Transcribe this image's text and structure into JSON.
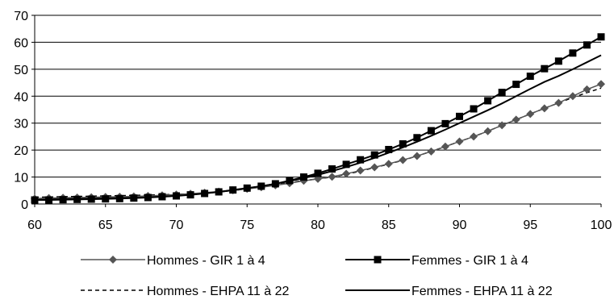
{
  "chart_data": {
    "type": "line",
    "title": "",
    "xlabel": "",
    "ylabel": "",
    "xlim": [
      60,
      100
    ],
    "ylim": [
      0,
      70
    ],
    "x_ticks": [
      60,
      65,
      70,
      75,
      80,
      85,
      90,
      95,
      100
    ],
    "y_ticks": [
      0,
      10,
      20,
      30,
      40,
      50,
      60,
      70
    ],
    "x_tick_labels": [
      "60",
      "65",
      "70",
      "75",
      "80",
      "85",
      "90",
      "95",
      "100"
    ],
    "y_tick_labels": [
      "0",
      "10",
      "20",
      "30",
      "40",
      "50",
      "60",
      "70"
    ],
    "grid": "horizontal",
    "legend_position": "bottom",
    "x": [
      60,
      61,
      62,
      63,
      64,
      65,
      66,
      67,
      68,
      69,
      70,
      71,
      72,
      73,
      74,
      75,
      76,
      77,
      78,
      79,
      80,
      81,
      82,
      83,
      84,
      85,
      86,
      87,
      88,
      89,
      90,
      91,
      92,
      93,
      94,
      95,
      96,
      97,
      98,
      99,
      100
    ],
    "series": [
      {
        "name": "Hommes - GIR 1 à 4",
        "style": "solid-diamond",
        "color": "#555555",
        "values": [
          2.0,
          2.2,
          2.3,
          2.4,
          2.5,
          2.6,
          2.7,
          2.8,
          3.0,
          3.2,
          3.5,
          3.8,
          4.2,
          4.6,
          5.1,
          5.6,
          6.2,
          6.9,
          7.7,
          8.6,
          9.3,
          10.1,
          11.2,
          12.4,
          13.6,
          14.9,
          16.3,
          17.8,
          19.5,
          21.3,
          23.2,
          25.0,
          27.0,
          29.2,
          31.3,
          33.4,
          35.5,
          37.5,
          40.0,
          42.5,
          44.5
        ]
      },
      {
        "name": "Femmes - GIR 1 à 4",
        "style": "solid-square",
        "color": "#000000",
        "values": [
          1.5,
          1.5,
          1.6,
          1.7,
          1.8,
          1.9,
          2.0,
          2.2,
          2.4,
          2.7,
          3.0,
          3.4,
          3.9,
          4.5,
          5.2,
          5.9,
          6.6,
          7.5,
          8.7,
          10.0,
          11.4,
          13.0,
          14.7,
          16.4,
          18.2,
          20.2,
          22.3,
          24.6,
          27.2,
          29.8,
          32.5,
          35.3,
          38.3,
          41.4,
          44.4,
          47.4,
          50.2,
          53.0,
          56.0,
          59.0,
          62.0
        ]
      },
      {
        "name": "Hommes - EHPA 11 à 22",
        "style": "dashed",
        "color": "#000000",
        "values": [
          2.5,
          2.6,
          2.7,
          2.8,
          2.9,
          3.0,
          3.1,
          3.2,
          3.3,
          3.4,
          3.6,
          3.8,
          4.1,
          4.5,
          5.0,
          5.6,
          6.3,
          7.1,
          7.9,
          8.7,
          9.3,
          10.0,
          11.0,
          12.2,
          13.5,
          14.8,
          16.2,
          17.8,
          19.5,
          21.3,
          23.2,
          25.0,
          27.0,
          29.2,
          31.3,
          33.4,
          35.5,
          37.5,
          39.5,
          41.3,
          43.0
        ]
      },
      {
        "name": "Femmes - EHPA 11 à 22",
        "style": "solid",
        "color": "#000000",
        "values": [
          1.8,
          1.9,
          2.0,
          2.1,
          2.2,
          2.3,
          2.4,
          2.6,
          2.8,
          3.0,
          3.3,
          3.6,
          4.0,
          4.5,
          5.1,
          5.8,
          6.6,
          7.5,
          8.5,
          9.6,
          10.8,
          12.2,
          13.7,
          15.3,
          17.1,
          19.0,
          21.0,
          23.1,
          25.3,
          27.6,
          30.0,
          32.4,
          34.8,
          37.3,
          40.0,
          42.7,
          45.3,
          47.5,
          50.0,
          52.6,
          55.2
        ]
      }
    ]
  }
}
